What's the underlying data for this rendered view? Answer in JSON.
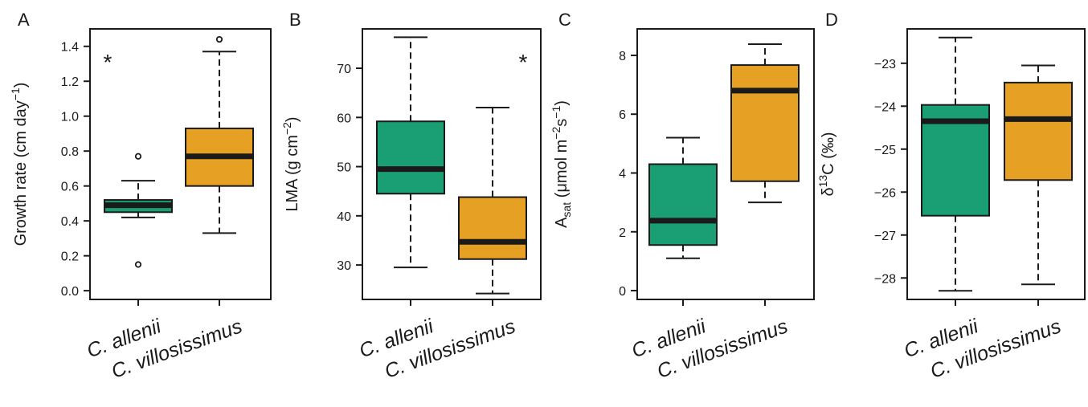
{
  "chart_data": [
    {
      "type": "boxplot",
      "panel_label": "A",
      "ylabel": {
        "text": "Growth rate (cm day",
        "sup": "−1",
        "tail": ")"
      },
      "ylim": [
        -0.05,
        1.5
      ],
      "yticks": [
        0.0,
        0.2,
        0.4,
        0.6,
        0.8,
        1.0,
        1.2,
        1.4
      ],
      "tick_labels": [
        "0.0",
        "0.2",
        "0.4",
        "0.6",
        "0.8",
        "1.0",
        "1.2",
        "1.4"
      ],
      "categories": [
        "C. allenii",
        "C. villosissimus"
      ],
      "boxes": [
        {
          "whisker_low": 0.42,
          "q1": 0.45,
          "median": 0.49,
          "q3": 0.52,
          "whisker_high": 0.63,
          "outliers": [
            0.15,
            0.77
          ]
        },
        {
          "whisker_low": 0.33,
          "q1": 0.6,
          "median": 0.77,
          "q3": 0.93,
          "whisker_high": 1.37,
          "outliers": [
            1.44
          ]
        }
      ],
      "annotation": {
        "text": "*",
        "position": "top-left"
      }
    },
    {
      "type": "boxplot",
      "panel_label": "B",
      "ylabel": {
        "text": "LMA (g cm",
        "sup": "−2",
        "tail": ")"
      },
      "ylim": [
        23,
        78
      ],
      "yticks": [
        30,
        40,
        50,
        60,
        70
      ],
      "tick_labels": [
        "30",
        "40",
        "50",
        "60",
        "70"
      ],
      "categories": [
        "C. allenii",
        "C. villosissimus"
      ],
      "boxes": [
        {
          "whisker_low": 29.5,
          "q1": 44.5,
          "median": 49.5,
          "q3": 59.2,
          "whisker_high": 76.3,
          "outliers": []
        },
        {
          "whisker_low": 24.2,
          "q1": 31.2,
          "median": 34.7,
          "q3": 43.8,
          "whisker_high": 62.0,
          "outliers": []
        }
      ],
      "annotation": {
        "text": "*",
        "position": "top-right"
      }
    },
    {
      "type": "boxplot",
      "panel_label": "C",
      "ylabel": {
        "text": "A",
        "sub": "sat",
        "rest": " (μmol m",
        "sup1": "−2",
        "mid": "s",
        "sup2": "−1",
        "tail": ")"
      },
      "ylim": [
        -0.3,
        8.9
      ],
      "yticks": [
        0,
        2,
        4,
        6,
        8
      ],
      "tick_labels": [
        "0",
        "2",
        "4",
        "6",
        "8"
      ],
      "categories": [
        "C. allenii",
        "C. villosissimus"
      ],
      "boxes": [
        {
          "whisker_low": 1.1,
          "q1": 1.55,
          "median": 2.38,
          "q3": 4.3,
          "whisker_high": 5.2,
          "outliers": []
        },
        {
          "whisker_low": 3.0,
          "q1": 3.72,
          "median": 6.8,
          "q3": 7.67,
          "whisker_high": 8.38,
          "outliers": []
        }
      ],
      "annotation": null
    },
    {
      "type": "boxplot",
      "panel_label": "D",
      "ylabel": {
        "text": "δ",
        "sup": "13",
        "tail": "C (‰)"
      },
      "ylim": [
        -28.5,
        -22.2
      ],
      "yticks": [
        -28,
        -27,
        -26,
        -25,
        -24,
        -23
      ],
      "tick_labels": [
        "−28",
        "−27",
        "−26",
        "−25",
        "−24",
        "−23"
      ],
      "categories": [
        "C. allenii",
        "C. villosissimus"
      ],
      "boxes": [
        {
          "whisker_low": -28.3,
          "q1": -26.55,
          "median": -24.35,
          "q3": -23.97,
          "whisker_high": -22.4,
          "outliers": []
        },
        {
          "whisker_low": -28.15,
          "q1": -25.72,
          "median": -24.3,
          "q3": -23.45,
          "whisker_high": -23.05,
          "outliers": []
        }
      ],
      "annotation": null
    }
  ],
  "colors": {
    "C. allenii": "#1a9e74",
    "C. villosissimus": "#e6a024",
    "line": "#1a1a1a"
  }
}
